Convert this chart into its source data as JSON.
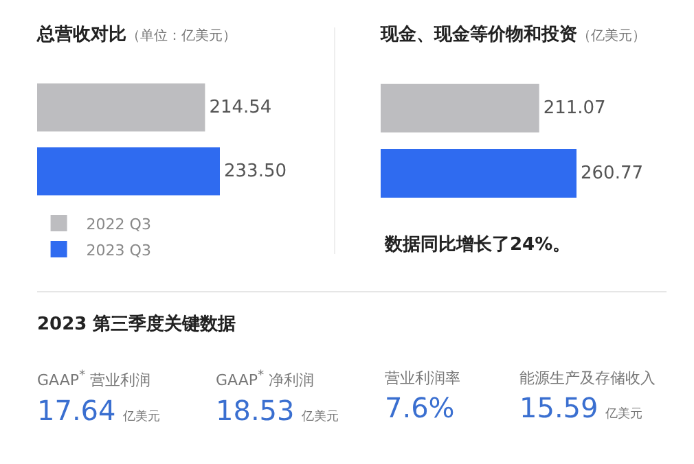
{
  "chart_data": [
    {
      "type": "bar",
      "orientation": "horizontal",
      "title": "总营收对比",
      "subtitle": "（单位：亿美元）",
      "categories": [
        null
      ],
      "legend": "bottom left",
      "series": [
        {
          "name": "2022 Q3",
          "color": "#bdbdc0",
          "values": [
            214.54
          ],
          "value_labels": [
            "214.54"
          ]
        },
        {
          "name": "2023 Q3",
          "color": "#2f6bf0",
          "values": [
            233.5
          ],
          "value_labels": [
            "233.50"
          ]
        }
      ]
    },
    {
      "type": "bar",
      "orientation": "horizontal",
      "title": "现金、现金等价物和投资",
      "subtitle": "（亿美元）",
      "categories": [
        null
      ],
      "annotations": [
        "数据同比增长了24%。"
      ],
      "series": [
        {
          "color": "#bdbdc0",
          "values": [
            211.07
          ],
          "value_labels": [
            "211.07"
          ]
        },
        {
          "color": "#2f6bf0",
          "values": [
            260.77
          ],
          "value_labels": [
            "260.77"
          ]
        }
      ]
    },
    {
      "type": "other",
      "title": "2023 第三季度关键数据",
      "categories": [
        "GAAP$^{*}$ 营业利润",
        "GAAP$^{*}$ 净利润",
        "营业利润率",
        "能源生产及存储收入"
      ],
      "value_labels": [
        "17.64 亿美元",
        "18.53 亿美元",
        "7.6%",
        "15.59 亿美元"
      ]
    }
  ]
}
